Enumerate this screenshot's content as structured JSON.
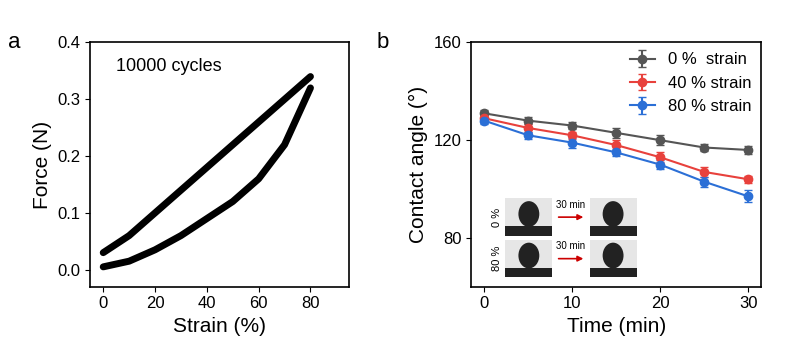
{
  "chart_data": [
    {
      "type": "line",
      "title": "a",
      "x_label": "Strain (%)",
      "y_label": "Force (N)",
      "annotations": [
        "10000 cycles"
      ],
      "series": [
        {
          "color": "#000000",
          "x": [
            0,
            10,
            20,
            30,
            40,
            50,
            60,
            70,
            80
          ],
          "values": [
            0.03,
            0.06,
            0.1,
            0.14,
            0.18,
            0.22,
            0.26,
            0.3,
            0.34
          ]
        },
        {
          "color": "#000000",
          "x": [
            80,
            70,
            60,
            50,
            40,
            30,
            20,
            10,
            0
          ],
          "values": [
            0.32,
            0.22,
            0.16,
            0.12,
            0.09,
            0.06,
            0.035,
            0.015,
            0.005
          ]
        }
      ],
      "xlim": [
        -5,
        95
      ],
      "xticks": [
        0,
        20,
        40,
        60,
        80
      ],
      "ylim": [
        -0.03,
        0.4
      ],
      "yticks": [
        {
          "value": 0.0,
          "label": "0.0"
        },
        {
          "value": 0.1,
          "label": "0.1"
        },
        {
          "value": 0.2,
          "label": "0.2"
        },
        {
          "value": 0.3,
          "label": "0.3"
        },
        {
          "value": 0.4,
          "label": "0.4"
        }
      ]
    },
    {
      "type": "line",
      "title": "b",
      "x_label": "Time (min)",
      "y_label": "Contact angle (°)",
      "x": [
        0,
        5,
        10,
        15,
        20,
        25,
        30
      ],
      "series": [
        {
          "name": "0 %  strain",
          "color": "#555555",
          "marker": "o",
          "values": [
            131,
            128,
            126,
            123,
            120,
            117,
            116
          ],
          "errors": [
            1.5,
            1.5,
            1.5,
            2,
            2,
            1.5,
            1.5
          ]
        },
        {
          "name": "40 % strain",
          "color": "#e8413c",
          "marker": "o",
          "values": [
            129,
            125,
            122,
            118,
            113,
            107,
            104
          ],
          "errors": [
            1.5,
            1.5,
            1.5,
            2,
            2,
            2,
            1.5
          ]
        },
        {
          "name": "80 % strain",
          "color": "#2b6fd6",
          "marker": "o",
          "values": [
            128,
            122,
            119,
            115,
            110,
            103,
            97
          ],
          "errors": [
            1.5,
            1.5,
            2,
            1.5,
            2,
            2,
            2.5
          ]
        }
      ],
      "legend": "upper right",
      "insets": {
        "labels": [
          "0 %",
          "80 %"
        ],
        "arrow_text": "30 min"
      },
      "xlim": [
        -1.5,
        31.5
      ],
      "xticks": [
        0,
        10,
        20,
        30
      ],
      "ylim": [
        60,
        160
      ],
      "yticks": [
        80,
        120,
        160
      ]
    }
  ]
}
